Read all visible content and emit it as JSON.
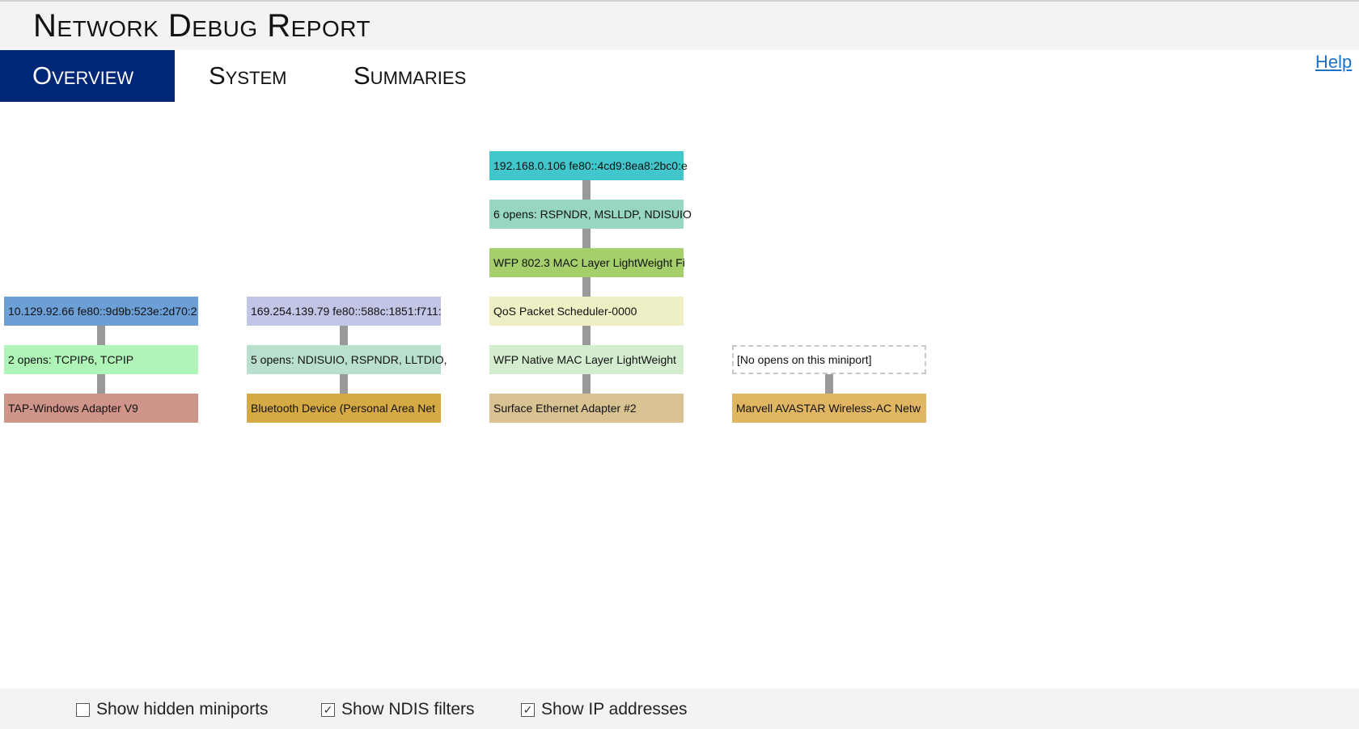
{
  "header": {
    "title": "Network Debug Report"
  },
  "tabs": [
    {
      "label": "Overview",
      "active": true
    },
    {
      "label": "System",
      "active": false
    },
    {
      "label": "Summaries",
      "active": false
    }
  ],
  "help_label": "Help",
  "stacks": [
    {
      "nodes": [
        {
          "text": "10.129.92.66 fe80::9d9b:523e:2d70:2",
          "color": "#6c9fd5"
        },
        {
          "text": "2 opens: TCPIP6, TCPIP",
          "color": "#b0f5b8"
        },
        {
          "text": "TAP-Windows Adapter V9",
          "color": "#d0958a"
        }
      ]
    },
    {
      "nodes": [
        {
          "text": "169.254.139.79 fe80::588c:1851:f711:",
          "color": "#c3c5e6"
        },
        {
          "text": "5 opens: NDISUIO, RSPNDR, LLTDIO,",
          "color": "#b8e0cc"
        },
        {
          "text": "Bluetooth Device (Personal Area Net",
          "color": "#d5aa45"
        }
      ]
    },
    {
      "nodes": [
        {
          "text": "192.168.0.106 fe80::4cd9:8ea8:2bc0:e",
          "color": "#40c6cb"
        },
        {
          "text": "6 opens: RSPNDR, MSLLDP, NDISUIO",
          "color": "#96d6c2"
        },
        {
          "text": "WFP 802.3 MAC Layer LightWeight Fi",
          "color": "#a5cf6a"
        },
        {
          "text": "QoS Packet Scheduler-0000",
          "color": "#eeefc4"
        },
        {
          "text": "WFP Native MAC Layer LightWeight",
          "color": "#d4edcf"
        },
        {
          "text": "Surface Ethernet Adapter #2",
          "color": "#d9c393"
        }
      ]
    },
    {
      "nodes": [
        {
          "text": "[No opens on this miniport]",
          "color": "#ffffff",
          "dashed": true
        },
        {
          "text": "Marvell AVASTAR Wireless-AC Netw",
          "color": "#e0b663"
        }
      ]
    }
  ],
  "footer": {
    "checkboxes": [
      {
        "label": "Show hidden miniports",
        "checked": false
      },
      {
        "label": "Show NDIS filters",
        "checked": true
      },
      {
        "label": "Show IP addresses",
        "checked": true
      }
    ]
  }
}
